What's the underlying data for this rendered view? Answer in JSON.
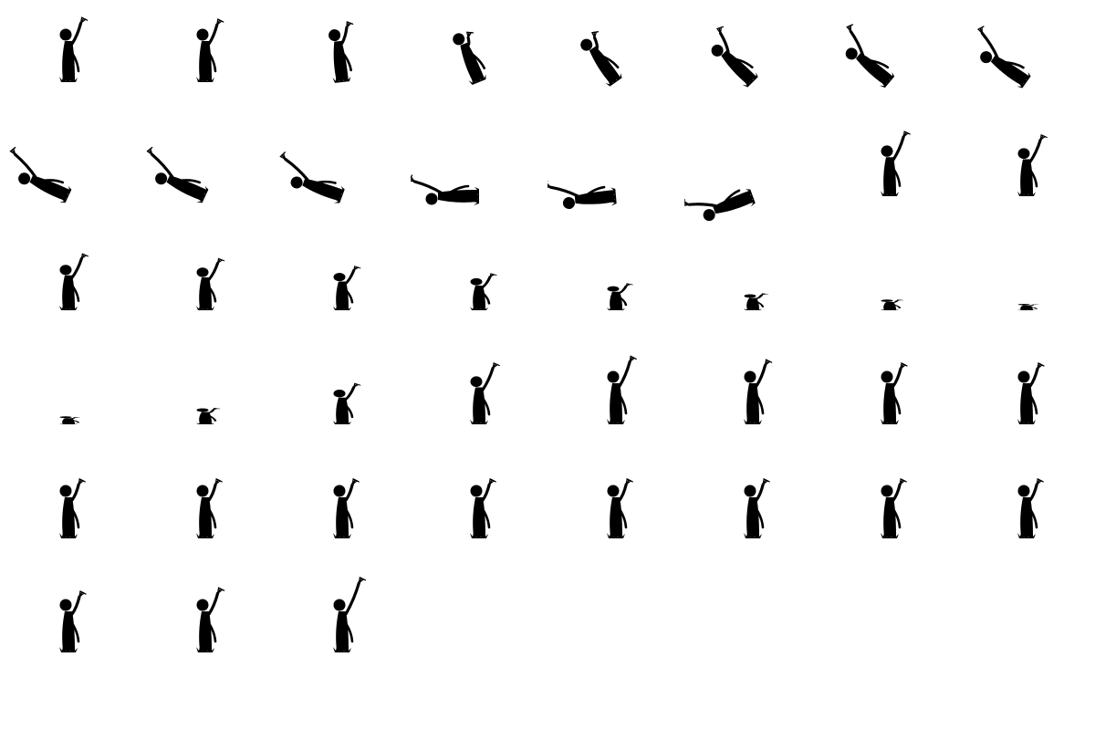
{
  "sheet": {
    "background": "#ffffff",
    "ink": "#000000",
    "grid_columns": 8,
    "frame_count": 43
  },
  "frames": [
    {
      "pose": "arm-raised",
      "tilt": 0,
      "reach": 0.6,
      "ground": 1,
      "visible": 1
    },
    {
      "pose": "arm-raised",
      "tilt": 0,
      "reach": 0.55,
      "ground": 1,
      "visible": 1
    },
    {
      "pose": "arm-raised",
      "tilt": -6,
      "reach": 0.45,
      "ground": 1,
      "visible": 1
    },
    {
      "pose": "lean",
      "tilt": -22,
      "reach": 0.2,
      "ground": 1,
      "visible": 1
    },
    {
      "pose": "lean",
      "tilt": -35,
      "reach": 0.3,
      "ground": 1,
      "visible": 1
    },
    {
      "pose": "lean",
      "tilt": -45,
      "reach": 0.55,
      "ground": 1,
      "visible": 1
    },
    {
      "pose": "lean",
      "tilt": -50,
      "reach": 0.7,
      "ground": 1,
      "visible": 1
    },
    {
      "pose": "lean",
      "tilt": -55,
      "reach": 0.75,
      "ground": 1,
      "visible": 1
    },
    {
      "pose": "bend",
      "tilt": -65,
      "reach": 0.8,
      "ground": 1,
      "visible": 1
    },
    {
      "pose": "bend",
      "tilt": -65,
      "reach": 0.8,
      "ground": 1,
      "visible": 1
    },
    {
      "pose": "bend",
      "tilt": -70,
      "reach": 0.8,
      "ground": 1,
      "visible": 1
    },
    {
      "pose": "bend",
      "tilt": -90,
      "reach": 0.75,
      "ground": 1,
      "visible": 1
    },
    {
      "pose": "bend",
      "tilt": -95,
      "reach": 0.75,
      "ground": 1,
      "visible": 1
    },
    {
      "pose": "bend",
      "tilt": -110,
      "reach": 0.7,
      "ground": 1,
      "visible": 1
    },
    {
      "pose": "sink",
      "tilt": 0,
      "reach": 0.7,
      "ground": 0.95,
      "visible": 1
    },
    {
      "pose": "sink",
      "tilt": 0,
      "reach": 0.7,
      "ground": 0.9,
      "visible": 1
    },
    {
      "pose": "sink",
      "tilt": 0,
      "reach": 0.65,
      "ground": 0.85,
      "visible": 1
    },
    {
      "pose": "sink",
      "tilt": 0,
      "reach": 0.6,
      "ground": 0.8,
      "visible": 1
    },
    {
      "pose": "sink",
      "tilt": 0,
      "reach": 0.55,
      "ground": 0.7,
      "visible": 1
    },
    {
      "pose": "sink",
      "tilt": 0,
      "reach": 0.5,
      "ground": 0.6,
      "visible": 1
    },
    {
      "pose": "sink",
      "tilt": 0,
      "reach": 0.45,
      "ground": 0.45,
      "visible": 1
    },
    {
      "pose": "sink",
      "tilt": 0,
      "reach": 0.35,
      "ground": 0.3,
      "visible": 1
    },
    {
      "pose": "sink",
      "tilt": 0,
      "reach": 0.25,
      "ground": 0.2,
      "visible": 1
    },
    {
      "pose": "sink",
      "tilt": 0,
      "reach": 0.15,
      "ground": 0.12,
      "visible": 1
    },
    {
      "pose": "rise",
      "tilt": 0,
      "reach": 0.1,
      "ground": 0.15,
      "visible": 1
    },
    {
      "pose": "rise",
      "tilt": 0,
      "reach": 0.3,
      "ground": 0.3,
      "visible": 1
    },
    {
      "pose": "rise",
      "tilt": 0,
      "reach": 0.55,
      "ground": 0.65,
      "visible": 1
    },
    {
      "pose": "rise",
      "tilt": 0,
      "reach": 0.7,
      "ground": 0.9,
      "visible": 1
    },
    {
      "pose": "rise",
      "tilt": 0,
      "reach": 0.7,
      "ground": 1,
      "visible": 1
    },
    {
      "pose": "rise",
      "tilt": 0,
      "reach": 0.6,
      "ground": 1,
      "visible": 1
    },
    {
      "pose": "stand",
      "tilt": 0,
      "reach": 0.5,
      "ground": 1,
      "visible": 1
    },
    {
      "pose": "stand",
      "tilt": 0,
      "reach": 0.5,
      "ground": 1,
      "visible": 1
    },
    {
      "pose": "stand",
      "tilt": 0,
      "reach": 0.45,
      "ground": 1,
      "visible": 1
    },
    {
      "pose": "stand",
      "tilt": 0,
      "reach": 0.45,
      "ground": 1,
      "visible": 1
    },
    {
      "pose": "stand",
      "tilt": 0,
      "reach": 0.45,
      "ground": 1,
      "visible": 1
    },
    {
      "pose": "stand",
      "tilt": 0,
      "reach": 0.45,
      "ground": 1,
      "visible": 1
    },
    {
      "pose": "stand",
      "tilt": 0,
      "reach": 0.45,
      "ground": 1,
      "visible": 1
    },
    {
      "pose": "stand",
      "tilt": 0,
      "reach": 0.45,
      "ground": 1,
      "visible": 1
    },
    {
      "pose": "stand",
      "tilt": 0,
      "reach": 0.45,
      "ground": 1,
      "visible": 1
    },
    {
      "pose": "stand",
      "tilt": 0,
      "reach": 0.45,
      "ground": 1,
      "visible": 1
    },
    {
      "pose": "stand",
      "tilt": 0,
      "reach": 0.5,
      "ground": 1,
      "visible": 1
    },
    {
      "pose": "stand",
      "tilt": 0,
      "reach": 0.6,
      "ground": 1,
      "visible": 1
    },
    {
      "pose": "reach",
      "tilt": 0,
      "reach": 0.9,
      "ground": 1,
      "visible": 1
    }
  ]
}
